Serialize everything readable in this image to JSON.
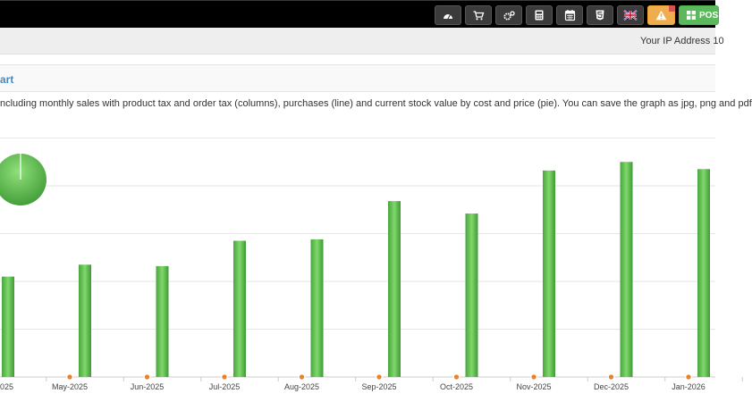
{
  "topbar": {
    "icons": [
      "dashboard-icon",
      "cart-icon",
      "cogs-icon",
      "calculator-icon",
      "calendar-icon",
      "html5-icon",
      "flag-uk-icon",
      "alert-icon",
      "pos-icon"
    ],
    "pos_label": "POS",
    "colors": {
      "bar": "#000000",
      "button": "#3b3b3b",
      "alert": "#f0ad4e",
      "pos": "#5cb85c"
    }
  },
  "ip_text": "Your IP Address 10",
  "panel_title": "art",
  "intro_text": "ncluding monthly sales with product tax and order tax (columns), purchases (line) and current stock value by cost and price (pie). You can save the graph as jpg, png and pdf",
  "chart_data": {
    "type": "bar",
    "categories": [
      "May-2025",
      "Jun-2025",
      "Jul-2025",
      "Aug-2025",
      "Sep-2025",
      "Oct-2025",
      "Nov-2025",
      "Dec-2025",
      "Jan-2026"
    ],
    "edge_label": "025",
    "edge_value": 2.1,
    "values": [
      2.35,
      2.32,
      2.85,
      2.88,
      3.68,
      3.42,
      4.32,
      4.5,
      4.35
    ],
    "purchases": [
      0,
      0,
      0,
      0,
      0,
      0,
      0,
      0,
      0
    ],
    "ylim": [
      0,
      5
    ],
    "grid": true,
    "colors": {
      "bar": "#5cb85c",
      "marker": "#e8822a",
      "pie": "#5cb85c"
    }
  }
}
